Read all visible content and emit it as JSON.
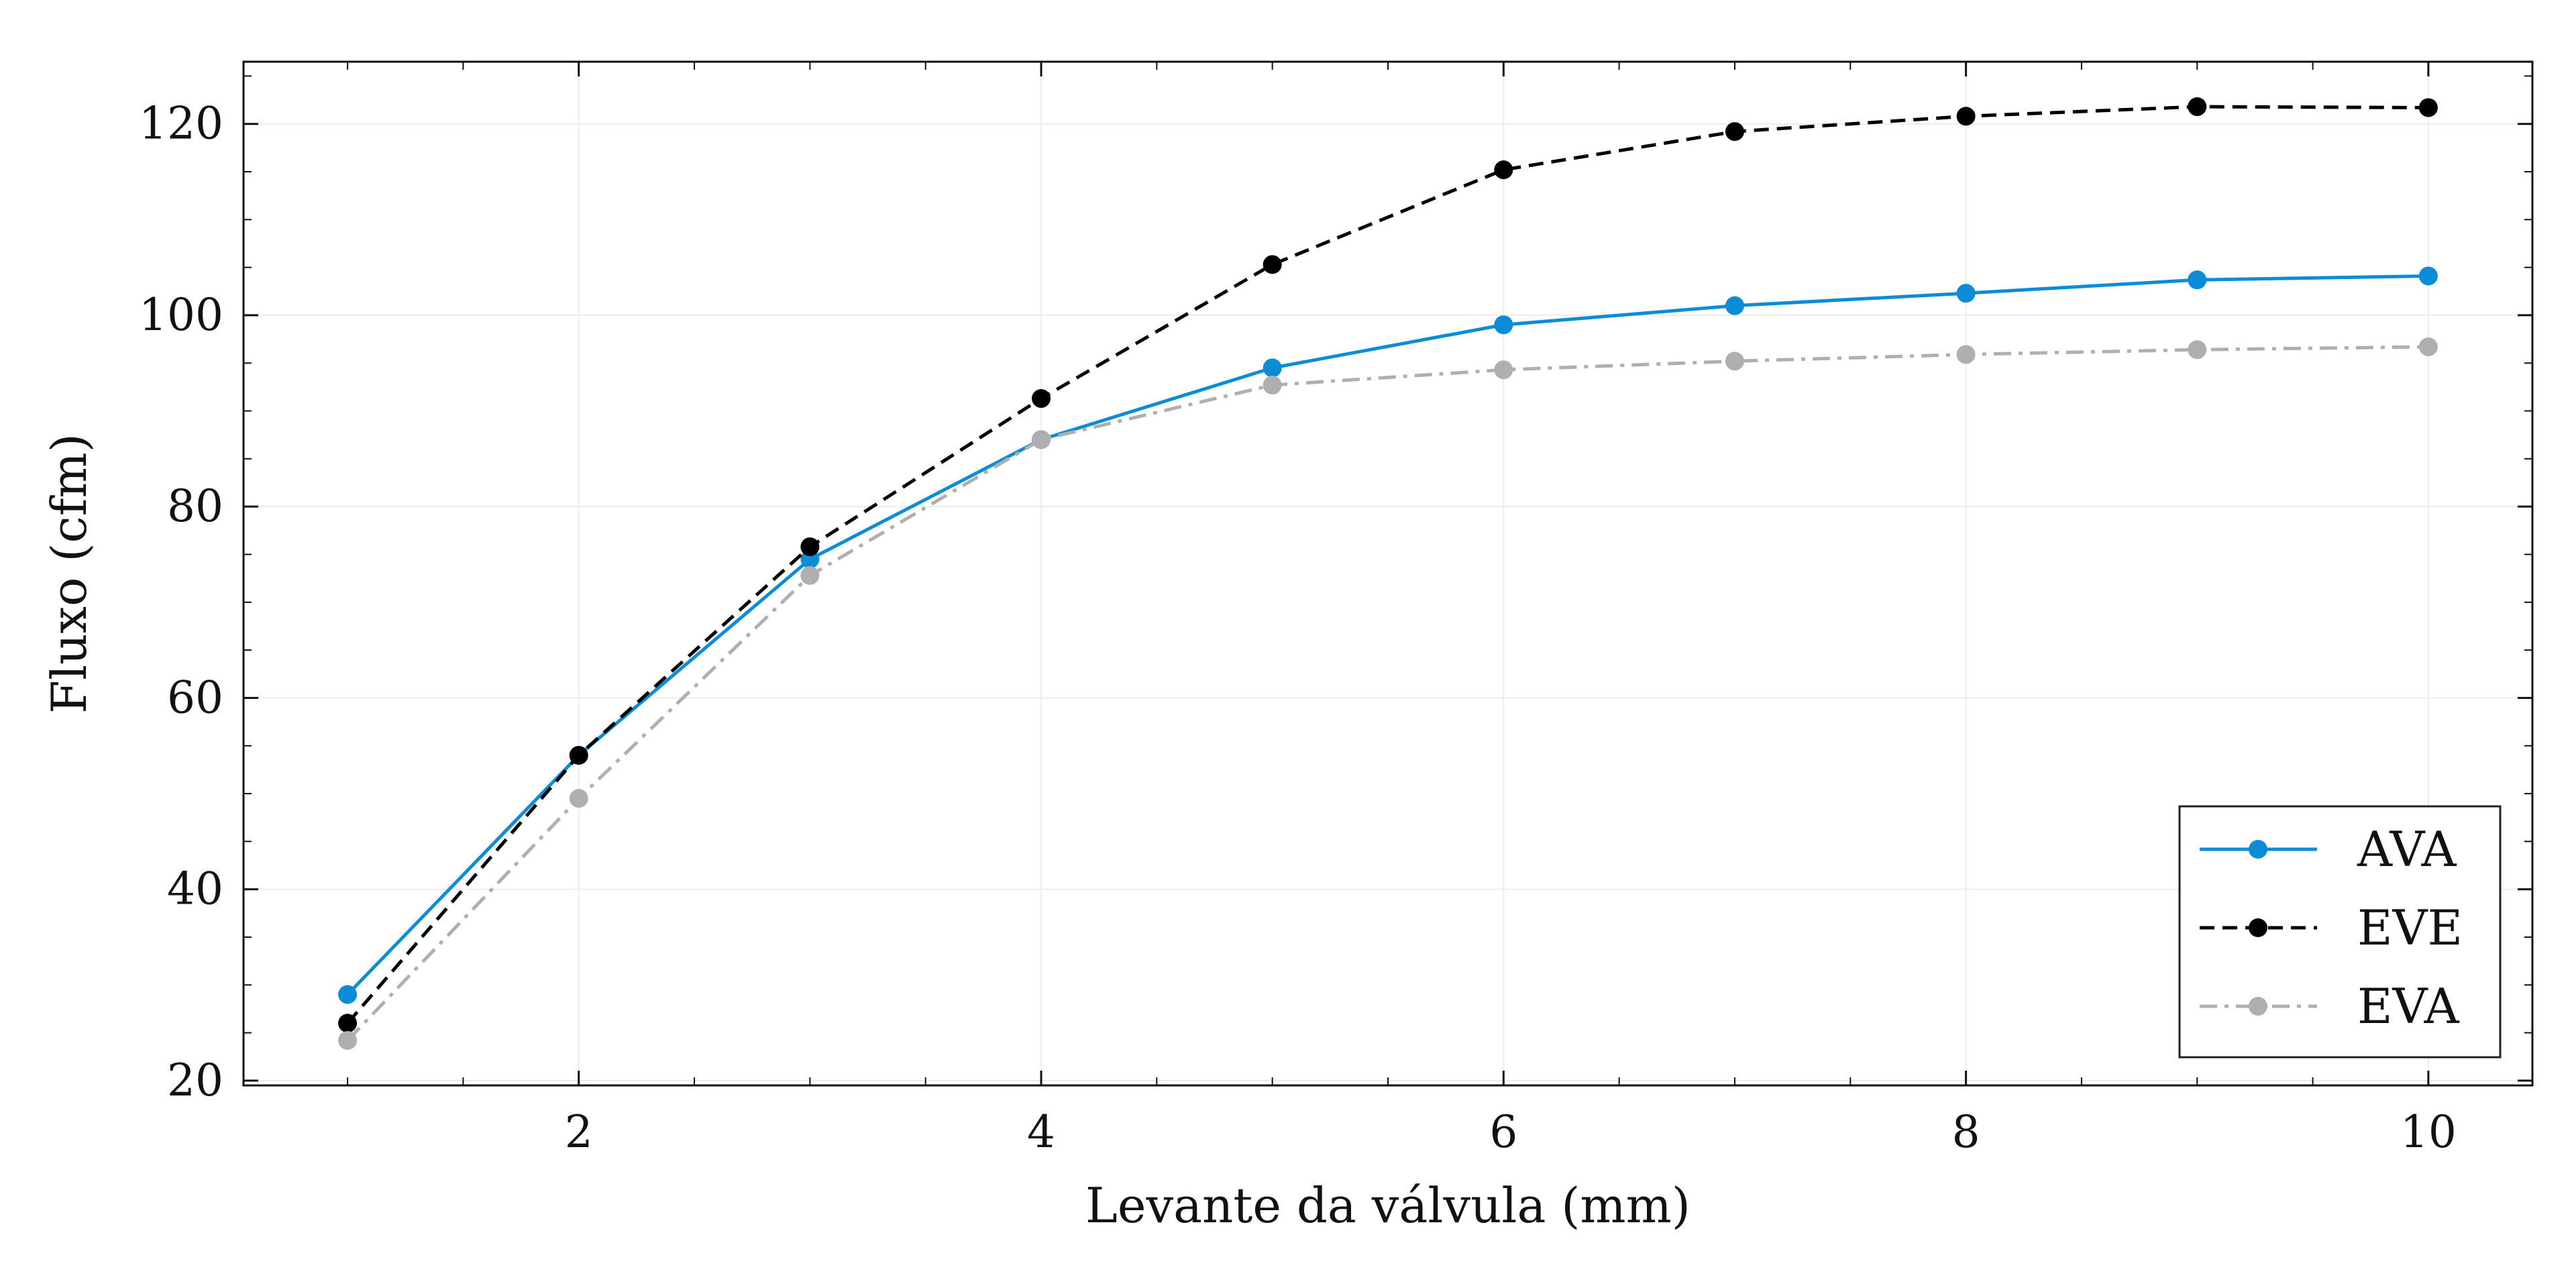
{
  "chart_data": {
    "type": "line",
    "title": "",
    "xlabel": "Levante da válvula (mm)",
    "ylabel": "Fluxo (cfm)",
    "xlim": [
      0.55,
      10.45
    ],
    "ylim": [
      19.5,
      126.5
    ],
    "x_ticks": [
      2,
      4,
      6,
      8,
      10
    ],
    "x_minor_ticks": [
      1,
      1.5,
      2.5,
      3,
      3.5,
      4.5,
      5,
      5.5,
      6.5,
      7,
      7.5,
      8.5,
      9,
      9.5
    ],
    "y_ticks": [
      20,
      40,
      60,
      80,
      100,
      120
    ],
    "y_minor_ticks": [
      25,
      30,
      35,
      45,
      50,
      55,
      65,
      70,
      75,
      85,
      90,
      95,
      105,
      110,
      115,
      125
    ],
    "x_tick_labels": [
      "2",
      "4",
      "6",
      "8",
      "10"
    ],
    "y_tick_labels": [
      "20",
      "40",
      "60",
      "80",
      "100",
      "120"
    ],
    "grid": true,
    "legend": {
      "position": "bottom-right"
    },
    "x": [
      1,
      2,
      3,
      4,
      5,
      6,
      7,
      8,
      9,
      10
    ],
    "series": [
      {
        "name": "AVA",
        "color": "#0C8CD6",
        "line_style": "solid",
        "values": [
          29.0,
          54.0,
          74.5,
          87.0,
          94.5,
          99.0,
          101.0,
          102.3,
          103.7,
          104.1
        ]
      },
      {
        "name": "EVE",
        "color": "#000000",
        "line_style": "dashed",
        "values": [
          26.0,
          54.0,
          75.8,
          91.3,
          105.3,
          115.2,
          119.2,
          120.8,
          121.8,
          121.7
        ]
      },
      {
        "name": "EVA",
        "color": "#AFAFAF",
        "line_style": "dash-dot",
        "values": [
          24.2,
          49.5,
          72.8,
          87.0,
          92.7,
          94.3,
          95.2,
          95.9,
          96.4,
          96.7
        ]
      }
    ]
  }
}
